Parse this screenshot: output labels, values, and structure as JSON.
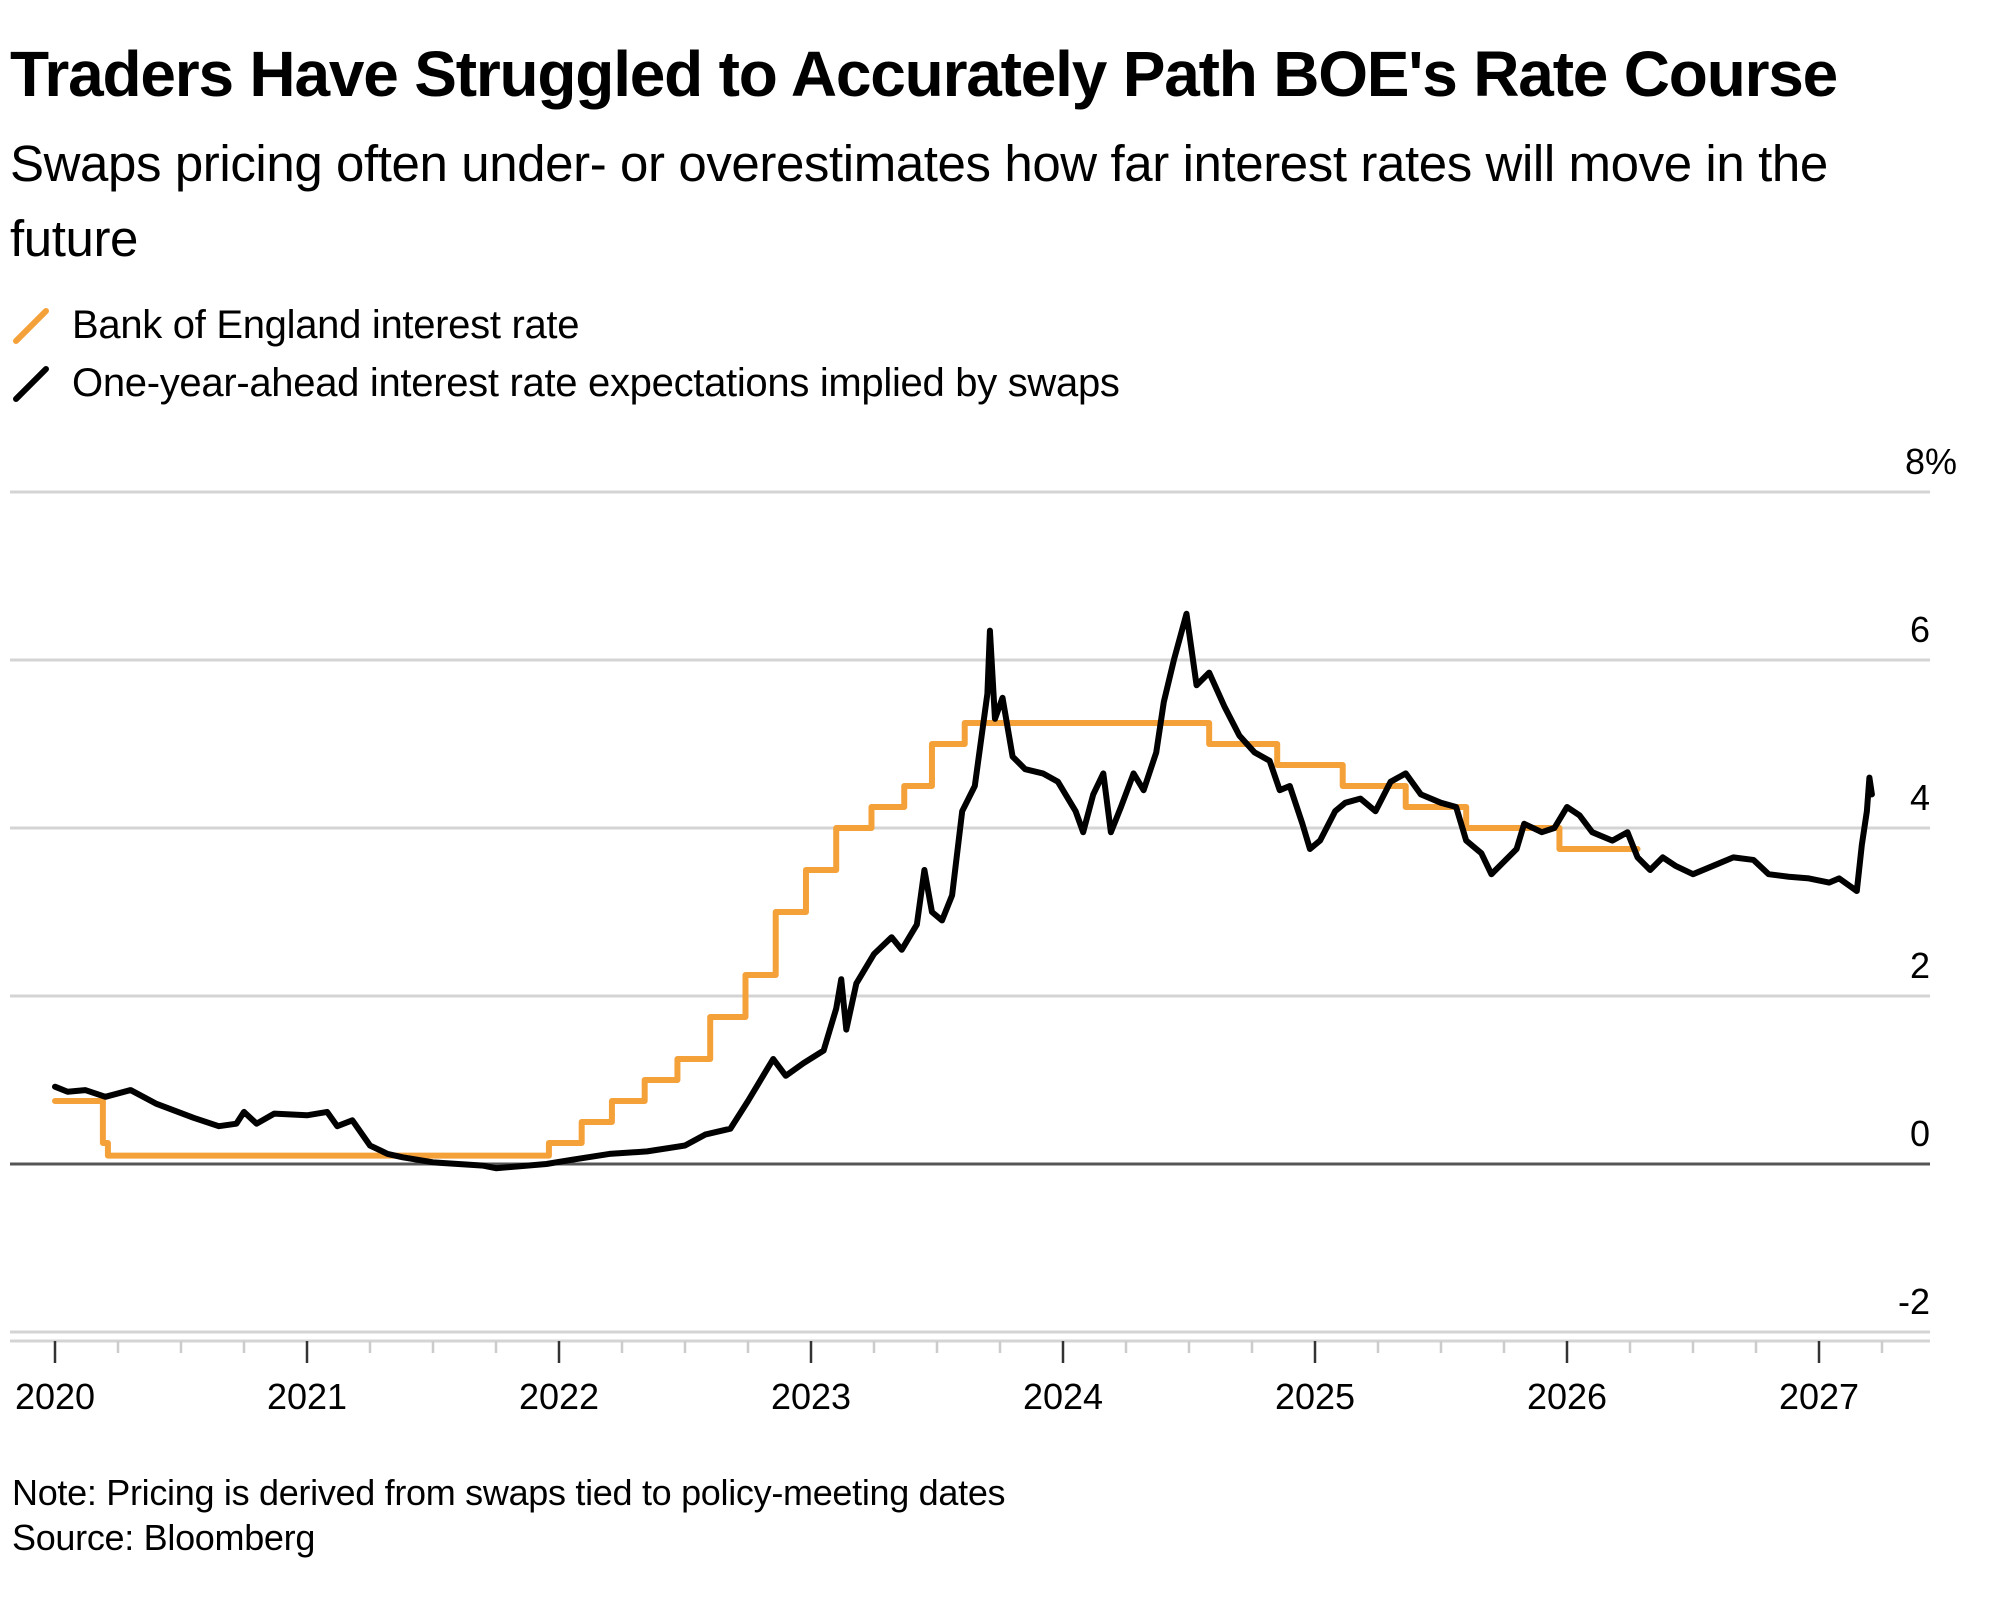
{
  "header": {
    "title": "Traders Have Struggled to Accurately Path BOE's Rate Course",
    "subtitle": "Swaps pricing often under- or overestimates how far interest rates will move in the future"
  },
  "legend": [
    {
      "label": "Bank of England interest rate",
      "color": "#f5a13a",
      "icon": "diagonal-line-icon"
    },
    {
      "label": "One-year-ahead interest rate expectations implied by swaps",
      "color": "#000000",
      "icon": "diagonal-line-icon"
    }
  ],
  "footer": {
    "note": "Note: Pricing is derived from swaps tied to policy-meeting dates",
    "source": "Source: Bloomberg"
  },
  "chart_data": {
    "type": "line",
    "title": "Traders Have Struggled to Accurately Path BOE's Rate Course",
    "subtitle": "Swaps pricing often under- or overestimates how far interest rates will move in the future",
    "xlabel": "",
    "ylabel": "",
    "xlim": [
      2020,
      2027.4
    ],
    "ylim": [
      -2,
      8
    ],
    "x_ticks": [
      2020,
      2021,
      2022,
      2023,
      2024,
      2025,
      2026,
      2027
    ],
    "x_tick_labels": [
      "2020",
      "2021",
      "2022",
      "2023",
      "2024",
      "2025",
      "2026",
      "2027"
    ],
    "x_minor_ticks_per_year": 4,
    "y_ticks": [
      -2,
      0,
      2,
      4,
      6,
      8
    ],
    "y_tick_labels": [
      "-2",
      "0",
      "2",
      "4",
      "6",
      "8%"
    ],
    "y_axis_side": "right",
    "grid": true,
    "legend_position": "top-left",
    "series": [
      {
        "name": "Bank of England interest rate",
        "color": "#f5a13a",
        "step": true,
        "x": [
          2020.0,
          2020.19,
          2020.21,
          2021.96,
          2022.09,
          2022.21,
          2022.34,
          2022.47,
          2022.6,
          2022.74,
          2022.86,
          2022.98,
          2023.1,
          2023.24,
          2023.37,
          2023.48,
          2023.61,
          2024.58,
          2024.85,
          2025.11,
          2025.36,
          2025.6,
          2025.97,
          2026.28
        ],
        "values": [
          0.75,
          0.25,
          0.1,
          0.25,
          0.5,
          0.75,
          1.0,
          1.25,
          1.75,
          2.25,
          3.0,
          3.5,
          4.0,
          4.25,
          4.5,
          5.0,
          5.25,
          5.0,
          4.75,
          4.5,
          4.25,
          4.0,
          3.75,
          3.75
        ]
      },
      {
        "name": "One-year-ahead interest rate expectations implied by swaps",
        "color": "#000000",
        "step": false,
        "x": [
          2020.0,
          2020.05,
          2020.12,
          2020.2,
          2020.3,
          2020.4,
          2020.55,
          2020.65,
          2020.72,
          2020.75,
          2020.8,
          2020.87,
          2021.0,
          2021.08,
          2021.12,
          2021.18,
          2021.25,
          2021.32,
          2021.38,
          2021.5,
          2021.7,
          2021.75,
          2021.95,
          2022.05,
          2022.2,
          2022.35,
          2022.5,
          2022.58,
          2022.68,
          2022.75,
          2022.82,
          2022.85,
          2022.9,
          2022.97,
          2023.05,
          2023.1,
          2023.12,
          2023.14,
          2023.18,
          2023.25,
          2023.32,
          2023.36,
          2023.42,
          2023.45,
          2023.48,
          2023.52,
          2023.56,
          2023.6,
          2023.65,
          2023.7,
          2023.71,
          2023.73,
          2023.76,
          2023.8,
          2023.85,
          2023.92,
          2023.98,
          2024.05,
          2024.08,
          2024.12,
          2024.16,
          2024.19,
          2024.23,
          2024.28,
          2024.32,
          2024.37,
          2024.4,
          2024.44,
          2024.49,
          2024.53,
          2024.58,
          2024.64,
          2024.7,
          2024.76,
          2024.82,
          2024.86,
          2024.9,
          2024.95,
          2024.98,
          2025.02,
          2025.08,
          2025.12,
          2025.18,
          2025.24,
          2025.3,
          2025.36,
          2025.42,
          2025.5,
          2025.56,
          2025.6,
          2025.66,
          2025.7,
          2025.75,
          2025.8,
          2025.83,
          2025.9,
          2025.95,
          2026.0,
          2026.05,
          2026.1,
          2026.18,
          2026.24,
          2026.28,
          2026.33,
          2026.38,
          2026.43,
          2026.5,
          2026.58,
          2026.66,
          2026.74,
          2026.8,
          2026.88,
          2026.96,
          2027.04,
          2027.08,
          2027.15,
          2027.17,
          2027.19,
          2027.2,
          2027.21
        ],
        "values": [
          0.92,
          0.86,
          0.88,
          0.8,
          0.88,
          0.72,
          0.55,
          0.45,
          0.48,
          0.62,
          0.48,
          0.6,
          0.58,
          0.62,
          0.45,
          0.52,
          0.22,
          0.12,
          0.08,
          0.02,
          -0.02,
          -0.05,
          0.0,
          0.05,
          0.12,
          0.15,
          0.22,
          0.35,
          0.42,
          0.75,
          1.1,
          1.25,
          1.05,
          1.2,
          1.35,
          1.85,
          2.2,
          1.6,
          2.15,
          2.5,
          2.7,
          2.55,
          2.85,
          3.5,
          3.0,
          2.9,
          3.2,
          4.2,
          4.5,
          5.6,
          6.35,
          5.3,
          5.55,
          4.85,
          4.7,
          4.65,
          4.55,
          4.2,
          3.95,
          4.4,
          4.65,
          3.95,
          4.25,
          4.65,
          4.45,
          4.9,
          5.5,
          6.0,
          6.55,
          5.7,
          5.85,
          5.45,
          5.1,
          4.9,
          4.8,
          4.45,
          4.5,
          4.05,
          3.75,
          3.85,
          4.2,
          4.3,
          4.35,
          4.2,
          4.55,
          4.65,
          4.4,
          4.3,
          4.25,
          3.85,
          3.7,
          3.45,
          3.6,
          3.75,
          4.05,
          3.95,
          4.0,
          4.25,
          4.15,
          3.95,
          3.85,
          3.95,
          3.65,
          3.5,
          3.65,
          3.55,
          3.45,
          3.55,
          3.65,
          3.62,
          3.45,
          3.42,
          3.4,
          3.35,
          3.4,
          3.25,
          3.8,
          4.2,
          4.6,
          4.4
        ]
      }
    ],
    "notes": [
      "Note: Pricing is derived from swaps tied to policy-meeting dates"
    ],
    "source": "Source: Bloomberg"
  }
}
